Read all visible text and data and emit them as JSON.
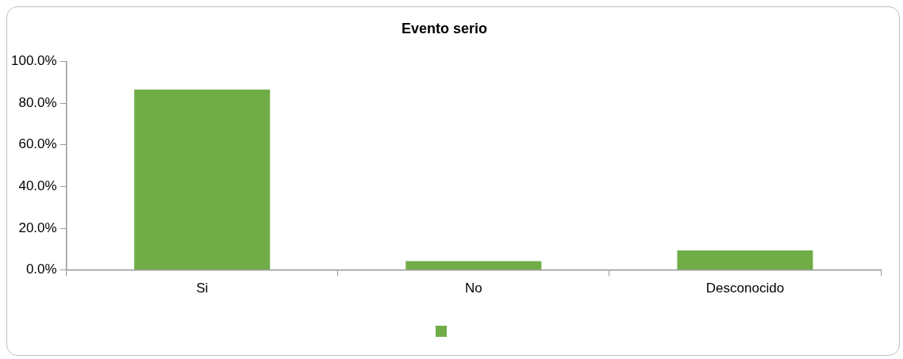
{
  "chart_data": {
    "type": "bar",
    "title": "Evento serio",
    "categories": [
      "Si",
      "No",
      "Desconocido"
    ],
    "series": [
      {
        "color": "#70ad47",
        "values": [
          86.5,
          4.2,
          9.4
        ]
      }
    ],
    "ylim": [
      0,
      100
    ],
    "yticks": [
      {
        "value": 0,
        "label": "0.0%"
      },
      {
        "value": 20,
        "label": "20.0%"
      },
      {
        "value": 40,
        "label": "40.0%"
      },
      {
        "value": 60,
        "label": "60.0%"
      },
      {
        "value": 80,
        "label": "80.0%"
      },
      {
        "value": 100,
        "label": "100.0%"
      }
    ],
    "grid": false
  }
}
